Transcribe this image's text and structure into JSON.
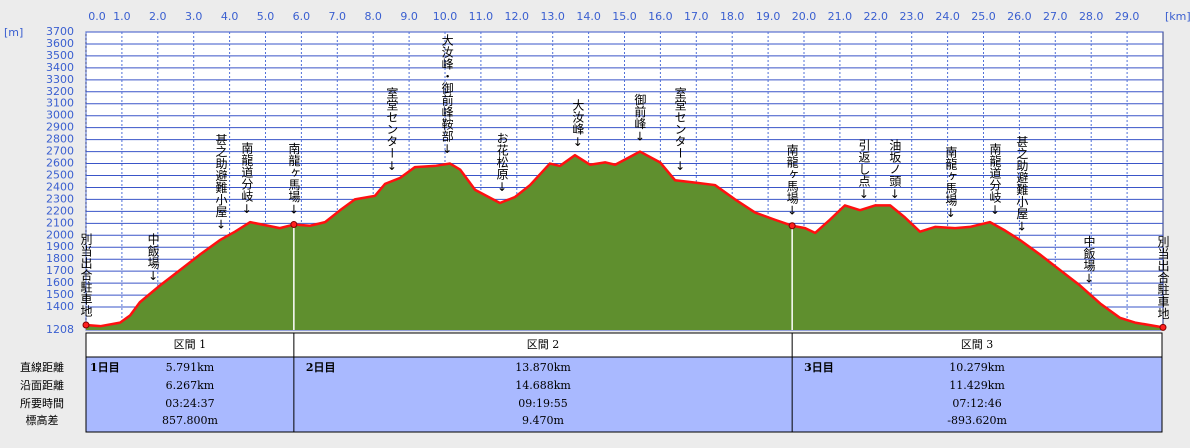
{
  "chart_data": {
    "type": "area",
    "x_unit": "[km]",
    "y_unit": "[m]",
    "xlim": [
      0,
      30
    ],
    "ylim": [
      1208,
      3700
    ],
    "xticks": [
      {
        "value": 0,
        "label": "0.0"
      },
      {
        "value": 1,
        "label": "1.0"
      },
      {
        "value": 2,
        "label": "2.0"
      },
      {
        "value": 3,
        "label": "3.0"
      },
      {
        "value": 4,
        "label": "4.0"
      },
      {
        "value": 5,
        "label": "5.0"
      },
      {
        "value": 6,
        "label": "6.0"
      },
      {
        "value": 7,
        "label": "7.0"
      },
      {
        "value": 8,
        "label": "8.0"
      },
      {
        "value": 9,
        "label": "9.0"
      },
      {
        "value": 10,
        "label": "10.0"
      },
      {
        "value": 11,
        "label": "11.0"
      },
      {
        "value": 12,
        "label": "12.0"
      },
      {
        "value": 13,
        "label": "13.0"
      },
      {
        "value": 14,
        "label": "14.0"
      },
      {
        "value": 15,
        "label": "15.0"
      },
      {
        "value": 16,
        "label": "16.0"
      },
      {
        "value": 17,
        "label": "17.0"
      },
      {
        "value": 18,
        "label": "18.0"
      },
      {
        "value": 19,
        "label": "19.0"
      },
      {
        "value": 20,
        "label": "20.0"
      },
      {
        "value": 21,
        "label": "21.0"
      },
      {
        "value": 22,
        "label": "22.0"
      },
      {
        "value": 23,
        "label": "23.0"
      },
      {
        "value": 24,
        "label": "24.0"
      },
      {
        "value": 25,
        "label": "25.0"
      },
      {
        "value": 26,
        "label": "26.0"
      },
      {
        "value": 27,
        "label": "27.0"
      },
      {
        "value": 28,
        "label": "28.0"
      },
      {
        "value": 29,
        "label": "29.0"
      }
    ],
    "yticks": [
      1208,
      1400,
      1500,
      1600,
      1700,
      1800,
      1900,
      2000,
      2100,
      2200,
      2300,
      2400,
      2500,
      2600,
      2700,
      2800,
      2900,
      3000,
      3100,
      3200,
      3300,
      3400,
      3500,
      3600,
      3700
    ],
    "grid": true,
    "fill_color": "#5f8f2e",
    "line_color": "#ff1010",
    "x": [
      0,
      0.4,
      0.95,
      1.23,
      1.5,
      2.06,
      2.62,
      3.18,
      3.73,
      4.15,
      4.57,
      4.9,
      5.4,
      5.79,
      6.24,
      6.66,
      7.08,
      7.49,
      8.05,
      8.33,
      8.75,
      9.16,
      9.72,
      10.14,
      10.42,
      10.84,
      11.53,
      11.95,
      12.37,
      12.92,
      13.2,
      13.62,
      14.04,
      14.46,
      14.74,
      15.43,
      15.99,
      16.41,
      16.97,
      17.52,
      18.08,
      18.64,
      19.19,
      19.67,
      20.03,
      20.31,
      20.72,
      21.14,
      21.56,
      21.98,
      22.4,
      22.81,
      23.23,
      23.65,
      24.21,
      24.62,
      25.18,
      25.6,
      26.02,
      26.57,
      27.13,
      27.69,
      28.25,
      28.8,
      29.22,
      30
    ],
    "values": [
      1250,
      1240,
      1270,
      1330,
      1440,
      1580,
      1710,
      1840,
      1960,
      2030,
      2110,
      2090,
      2060,
      2090,
      2080,
      2110,
      2210,
      2300,
      2330,
      2430,
      2480,
      2570,
      2580,
      2600,
      2550,
      2380,
      2270,
      2320,
      2420,
      2600,
      2580,
      2670,
      2590,
      2610,
      2590,
      2700,
      2610,
      2460,
      2440,
      2420,
      2300,
      2190,
      2130,
      2080,
      2060,
      2020,
      2130,
      2250,
      2210,
      2250,
      2250,
      2150,
      2030,
      2070,
      2060,
      2070,
      2110,
      2040,
      1960,
      1840,
      1710,
      1580,
      1430,
      1310,
      1270,
      1230
    ],
    "markers": [
      0,
      5.79,
      19.67,
      30
    ],
    "annotations": [
      {
        "text": "別当出合駐車地",
        "x": 0
      },
      {
        "text": "中飯場↓",
        "x": 1.87
      },
      {
        "text": "甚之助避難小屋↓",
        "x": 3.76
      },
      {
        "text": "南龍道分岐↓",
        "x": 4.48
      },
      {
        "text": "南龍ヶ馬場↓",
        "x": 5.79
      },
      {
        "text": "室堂センター↓",
        "x": 8.52
      },
      {
        "text": "大汝峰・御前峰鞍部↓",
        "x": 10.06
      },
      {
        "text": "お花松原↓",
        "x": 11.59
      },
      {
        "text": "大汝峰↓",
        "x": 13.7
      },
      {
        "text": "御前峰↓",
        "x": 15.43
      },
      {
        "text": "室堂センター↓",
        "x": 16.55
      },
      {
        "text": "南龍ヶ馬場↓",
        "x": 19.67
      },
      {
        "text": "引返し点↓",
        "x": 21.67
      },
      {
        "text": "油坂ノ頭↓",
        "x": 22.53
      },
      {
        "text": "南龍ヶ馬場↓",
        "x": 24.09
      },
      {
        "text": "南龍道分岐↓",
        "x": 25.32
      },
      {
        "text": "甚之助避難小屋↓",
        "x": 26.07
      },
      {
        "text": "中飯場↓",
        "x": 27.94
      },
      {
        "text": "別当出合駐車地",
        "x": 30
      }
    ]
  },
  "table": {
    "row_labels": [
      "直線距離",
      "沿面距離",
      "所要時間",
      "標高差"
    ],
    "sections": [
      {
        "name": "区間 1",
        "day": "1日目",
        "values": [
          "5.791km",
          "6.267km",
          "03:24:37",
          "857.800m"
        ]
      },
      {
        "name": "区間 2",
        "day": "2日目",
        "values": [
          "13.870km",
          "14.688km",
          "09:19:55",
          "9.470m"
        ]
      },
      {
        "name": "区間 3",
        "day": "3日目",
        "values": [
          "10.279km",
          "11.429km",
          "07:12:46",
          "-893.620m"
        ]
      }
    ]
  }
}
